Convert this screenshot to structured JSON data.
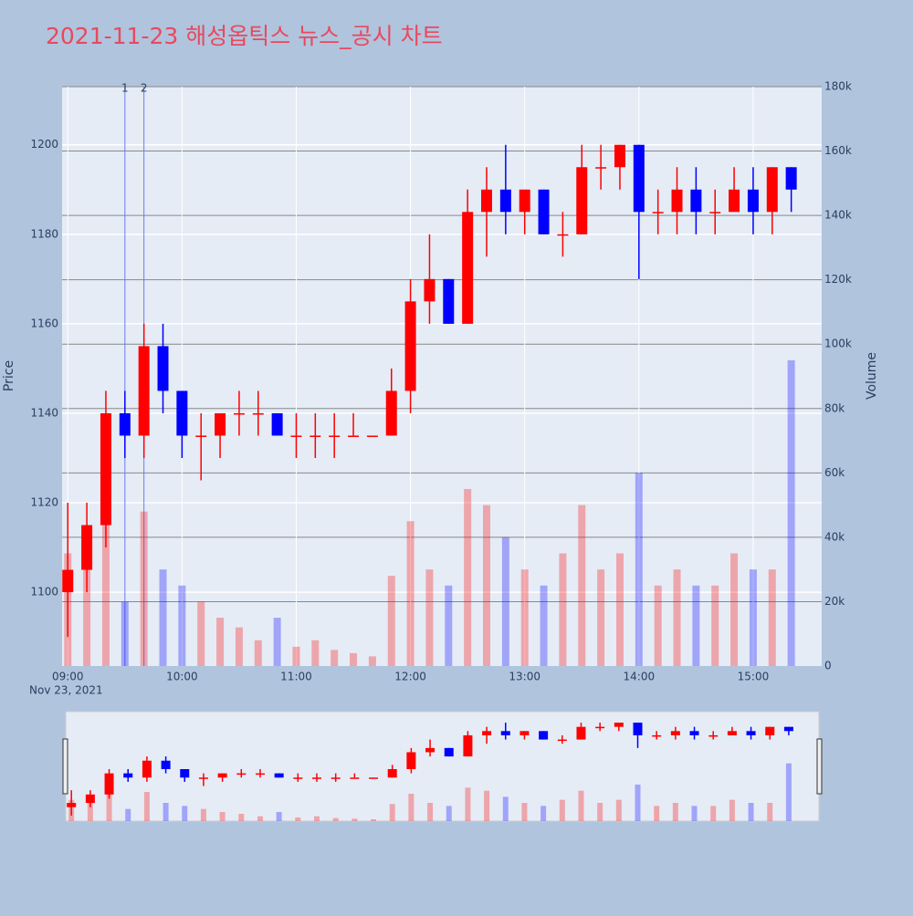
{
  "chart_data": {
    "type": "candlestick",
    "title": "2021-11-23 해성옵틱스 뉴스_공시 차트",
    "ylabel": "Price",
    "y2label": "Volume",
    "x_date_label": "Nov 23, 2021",
    "up_color": "#ff0000",
    "down_color": "#0000ff",
    "x": [
      "09:00",
      "09:10",
      "09:20",
      "09:30",
      "09:40",
      "09:50",
      "10:00",
      "10:10",
      "10:20",
      "10:30",
      "10:40",
      "10:50",
      "11:00",
      "11:10",
      "11:20",
      "11:30",
      "11:40",
      "11:50",
      "12:00",
      "12:10",
      "12:20",
      "12:30",
      "12:40",
      "12:50",
      "13:00",
      "13:10",
      "13:20",
      "13:30",
      "13:40",
      "13:50",
      "14:00",
      "14:10",
      "14:20",
      "14:30",
      "14:40",
      "14:50",
      "15:00",
      "15:10",
      "15:20"
    ],
    "open": [
      1100,
      1105,
      1115,
      1140,
      1135,
      1155,
      1145,
      1135,
      1135,
      1140,
      1140,
      1140,
      1135,
      1135,
      1135,
      1135,
      1135,
      1135,
      1145,
      1165,
      1170,
      1160,
      1185,
      1190,
      1185,
      1190,
      1180,
      1180,
      1195,
      1195,
      1200,
      1185,
      1185,
      1190,
      1185,
      1185,
      1190,
      1185,
      1195
    ],
    "high": [
      1120,
      1120,
      1145,
      1145,
      1160,
      1160,
      1145,
      1140,
      1140,
      1145,
      1145,
      1140,
      1140,
      1140,
      1140,
      1140,
      1135,
      1150,
      1170,
      1180,
      1170,
      1190,
      1195,
      1200,
      1190,
      1190,
      1185,
      1200,
      1200,
      1200,
      1200,
      1190,
      1195,
      1195,
      1190,
      1195,
      1195,
      1195,
      1195
    ],
    "low": [
      1090,
      1100,
      1110,
      1130,
      1130,
      1140,
      1130,
      1125,
      1130,
      1135,
      1135,
      1135,
      1130,
      1130,
      1130,
      1135,
      1135,
      1135,
      1140,
      1160,
      1160,
      1160,
      1175,
      1180,
      1180,
      1180,
      1175,
      1180,
      1190,
      1190,
      1170,
      1180,
      1180,
      1180,
      1180,
      1185,
      1180,
      1180,
      1185
    ],
    "close": [
      1105,
      1115,
      1140,
      1135,
      1155,
      1145,
      1135,
      1135,
      1140,
      1140,
      1140,
      1135,
      1135,
      1135,
      1135,
      1135,
      1135,
      1145,
      1165,
      1170,
      1160,
      1185,
      1190,
      1185,
      1190,
      1180,
      1180,
      1195,
      1195,
      1200,
      1185,
      1185,
      1190,
      1185,
      1185,
      1190,
      1185,
      1195,
      1190
    ],
    "volume": [
      35000,
      30000,
      55000,
      20000,
      48000,
      30000,
      25000,
      20000,
      15000,
      12000,
      8000,
      15000,
      6000,
      8000,
      5000,
      4000,
      3000,
      28000,
      45000,
      30000,
      25000,
      55000,
      50000,
      40000,
      30000,
      25000,
      35000,
      50000,
      30000,
      35000,
      60000,
      25000,
      30000,
      25000,
      25000,
      35000,
      30000,
      30000,
      95000
    ],
    "xlim": [
      "08:57",
      "15:36"
    ],
    "xticks": [
      "09:00",
      "10:00",
      "11:00",
      "12:00",
      "13:00",
      "14:00",
      "15:00"
    ],
    "ylim": [
      1083.5,
      1213
    ],
    "yticks": [
      1100,
      1120,
      1140,
      1160,
      1180,
      1200
    ],
    "y2lim": [
      0,
      180000
    ],
    "y2ticks": [
      0,
      {
        "value": 20000,
        "label": "20k"
      },
      {
        "value": 40000,
        "label": "40k"
      },
      {
        "value": 60000,
        "label": "60k"
      },
      {
        "value": 80000,
        "label": "80k"
      },
      {
        "value": 100000,
        "label": "100k"
      },
      {
        "value": 120000,
        "label": "120k"
      },
      {
        "value": 140000,
        "label": "140k"
      },
      {
        "value": 160000,
        "label": "160k"
      },
      {
        "value": 180000,
        "label": "180k"
      }
    ],
    "annotations": [
      {
        "x": "09:30",
        "label": "1"
      },
      {
        "x": "09:40",
        "label": "2"
      }
    ]
  }
}
